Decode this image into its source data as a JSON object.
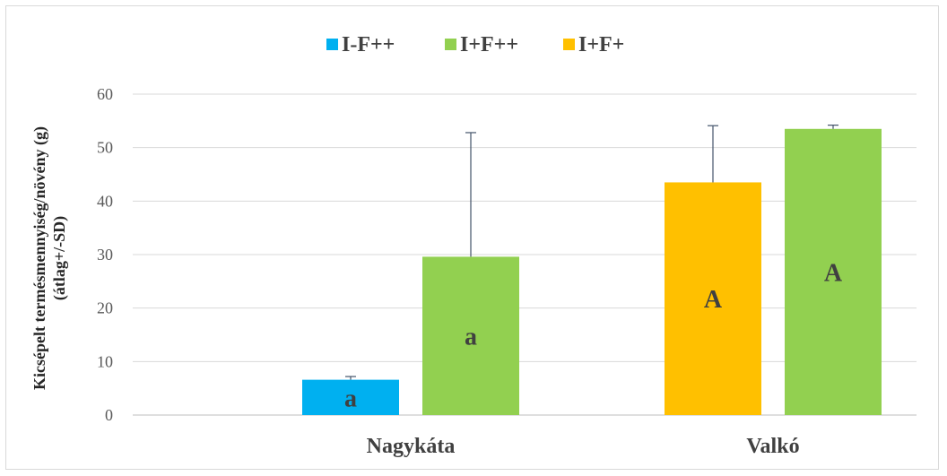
{
  "chart_data": {
    "type": "bar",
    "title": "",
    "ylabel_lines": [
      "Kicsépelt termésmennyiség/növény (g)",
      "(átlag+/-SD)"
    ],
    "xlabel": "",
    "ylim": [
      0,
      60
    ],
    "yticks": [
      0,
      10,
      20,
      30,
      40,
      50,
      60
    ],
    "grid": true,
    "legend_position": "top",
    "categories": [
      "Nagykáta",
      "Valkó"
    ],
    "series": [
      {
        "name": "I-F++",
        "color": "#00b0f0",
        "values": [
          6.6,
          null
        ],
        "sd": [
          0.6,
          null
        ],
        "sig": [
          "a",
          null
        ]
      },
      {
        "name": "I+F++",
        "color": "#92d050",
        "values": [
          29.6,
          53.5
        ],
        "sd": [
          23.2,
          0.7
        ],
        "sig": [
          "a",
          "A"
        ]
      },
      {
        "name": "I+F+",
        "color": "#ffc000",
        "values": [
          null,
          43.5
        ],
        "sd": [
          null,
          10.6
        ],
        "sig": [
          null,
          "A"
        ]
      }
    ],
    "bar_order": [
      {
        "category": 0,
        "series": 0
      },
      {
        "category": 0,
        "series": 1
      },
      {
        "category": 1,
        "series": 2
      },
      {
        "category": 1,
        "series": 1
      }
    ]
  }
}
